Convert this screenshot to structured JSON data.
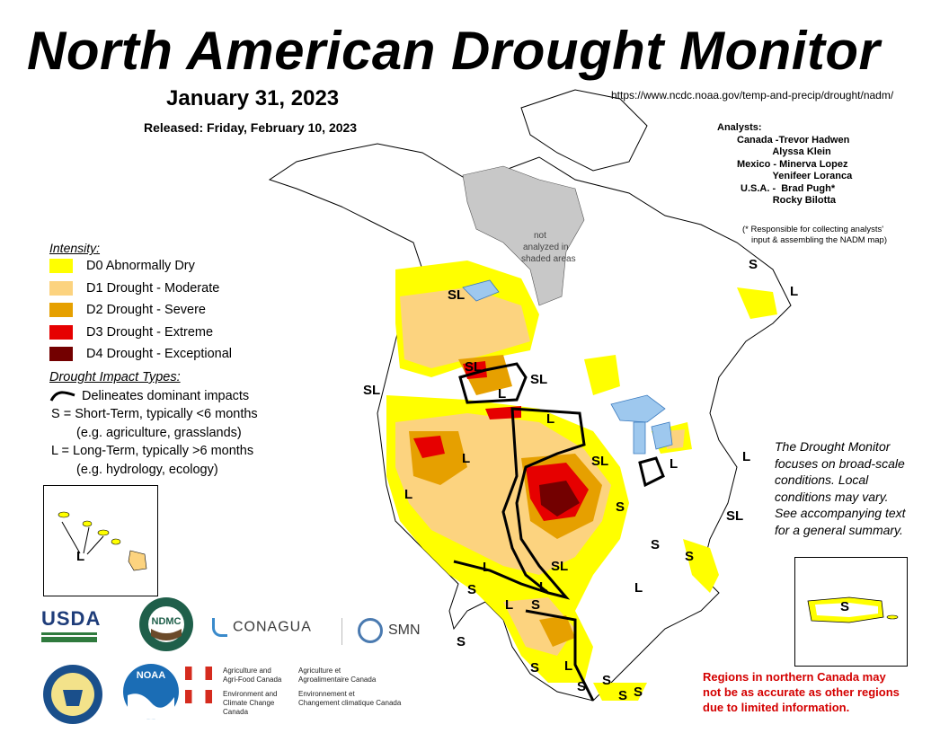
{
  "header": {
    "title": "North American Drought Monitor",
    "date": "January 31, 2023",
    "released": "Released: Friday, February 10, 2023",
    "url": "https://www.ncdc.noaa.gov/temp-and-precip/drought/nadm/"
  },
  "analysts": {
    "heading": "Analysts:",
    "rows": [
      "Canada -Trevor Hadwen",
      "             Alyssa Klein",
      "Mexico - Minerva Lopez",
      "             Yenifeer Loranca",
      "U.S.A. -  Brad Pugh*",
      "             Rocky Bilotta"
    ],
    "note_line1": "(* Responsible for collecting analysts'",
    "note_line2": "input & assembling the NADM map)"
  },
  "legend": {
    "heading": "Intensity:",
    "items": [
      {
        "label": "D0 Abnormally Dry",
        "color": "#ffff00"
      },
      {
        "label": "D1 Drought - Moderate",
        "color": "#fcd37f"
      },
      {
        "label": "D2 Drought - Severe",
        "color": "#e6a000"
      },
      {
        "label": "D3 Drought - Extreme",
        "color": "#e60000"
      },
      {
        "label": "D4 Drought - Exceptional",
        "color": "#730000"
      }
    ]
  },
  "impacts": {
    "heading": "Drought Impact Types:",
    "delineates": "Delineates dominant impacts",
    "short_term": "S = Short-Term, typically <6 months",
    "short_term_eg": "(e.g. agriculture, grasslands)",
    "long_term": "L = Long-Term, typically >6 months",
    "long_term_eg": "(e.g. hydrology, ecology)"
  },
  "map": {
    "not_analyzed_line1": "not",
    "not_analyzed_line2": "analyzed in",
    "not_analyzed_line3": "shaded areas",
    "labels": [
      "SL",
      "SL",
      "SL",
      "L",
      "SL",
      "L",
      "L",
      "L",
      "SL",
      "L",
      "S",
      "L",
      "S",
      "S",
      "SL",
      "L",
      "SL",
      "L",
      "S",
      "S",
      "S",
      "S",
      "L",
      "S",
      "S",
      "S",
      "L",
      "S",
      "L",
      "L",
      "S"
    ]
  },
  "notes": {
    "dm_line1": "The Drought Monitor",
    "dm_line2": "focuses on broad-scale",
    "dm_line3": "conditions.  Local",
    "dm_line4": "conditions may vary.",
    "dm_line5": "See accompanying text",
    "dm_line6": "for a general summary.",
    "canada_line1": "Regions in northern Canada may",
    "canada_line2": "not be as accurate as other regions",
    "canada_line3": "due to limited information."
  },
  "insets": {
    "hawaii_label": "L",
    "puerto_rico_label": "S"
  },
  "logos": {
    "usda": "USDA",
    "ndmc": "NDMC",
    "conagua": "CONAGUA",
    "smn": "SMN",
    "noaa": "NOAA",
    "aafc_en_1": "Agriculture and",
    "aafc_en_2": "Agri-Food Canada",
    "aafc_fr_1": "Agriculture et",
    "aafc_fr_2": "Agroalimentaire Canada",
    "eccc_en_1": "Environment and",
    "eccc_en_2": "Climate Change Canada",
    "eccc_fr_1": "Environnement et",
    "eccc_fr_2": "Changement climatique Canada"
  }
}
